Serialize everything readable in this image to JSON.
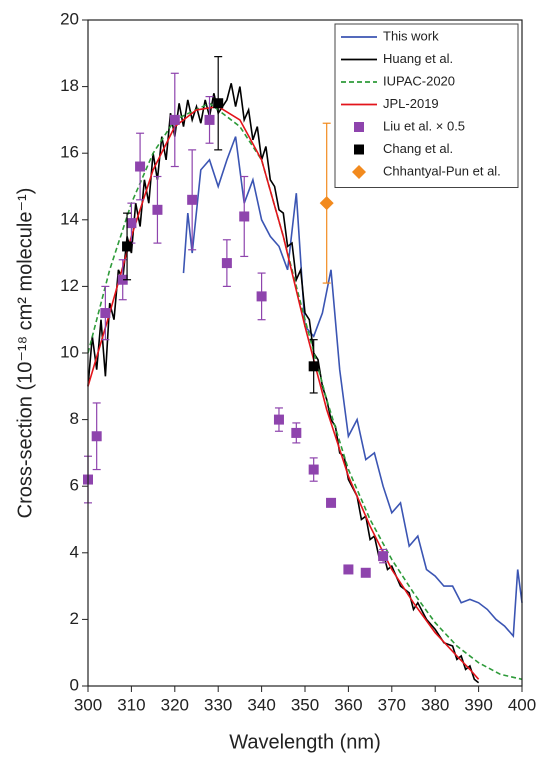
{
  "chart_data": {
    "type": "line",
    "xlabel": "Wavelength (nm)",
    "ylabel": "Cross-section (10⁻¹⁸ cm² molecule⁻¹)",
    "xlim": [
      300,
      400
    ],
    "xticks": [
      300,
      310,
      320,
      330,
      340,
      350,
      360,
      370,
      380,
      390,
      400
    ],
    "ylim": [
      0,
      20
    ],
    "yticks": [
      0,
      2,
      4,
      6,
      8,
      10,
      12,
      14,
      16,
      18,
      20
    ],
    "legend": "upper right",
    "series": [
      {
        "name": "This work",
        "kind": "line",
        "color": "#3b55b3",
        "linestyle": "solid",
        "x": [
          322,
          323,
          324,
          326,
          328,
          330,
          332,
          334,
          336,
          338,
          340,
          342,
          344,
          346,
          348,
          350,
          352,
          354,
          356,
          358,
          360,
          362,
          364,
          366,
          368,
          370,
          372,
          374,
          376,
          378,
          380,
          382,
          384,
          386,
          388,
          390,
          392,
          394,
          396,
          398,
          399,
          400
        ],
        "values": [
          12.4,
          14.2,
          13.0,
          15.5,
          15.8,
          15.0,
          15.8,
          16.5,
          14.5,
          15.2,
          14.0,
          13.5,
          13.2,
          12.5,
          14.8,
          10.8,
          10.5,
          11.2,
          12.5,
          9.5,
          7.5,
          8.0,
          6.8,
          7.0,
          6.0,
          5.2,
          5.5,
          4.2,
          4.5,
          3.5,
          3.3,
          3.0,
          3.0,
          2.5,
          2.6,
          2.5,
          2.3,
          2.0,
          1.8,
          1.5,
          3.5,
          2.5
        ]
      },
      {
        "name": "Huang et al.",
        "kind": "line",
        "color": "#000000",
        "linestyle": "solid",
        "x": [
          300,
          301,
          302,
          303,
          304,
          305,
          306,
          307,
          308,
          309,
          310,
          311,
          312,
          313,
          314,
          315,
          316,
          317,
          318,
          319,
          320,
          321,
          322,
          323,
          324,
          325,
          326,
          327,
          328,
          329,
          330,
          332,
          333,
          334,
          335,
          336,
          337,
          338,
          339,
          340,
          341,
          342,
          343,
          344,
          345,
          346,
          347,
          348,
          349,
          350,
          351,
          352,
          353,
          354,
          355,
          356,
          357,
          358,
          359,
          360,
          362,
          363,
          364,
          365,
          366,
          367,
          368,
          369,
          370,
          372,
          374,
          375,
          376,
          378,
          380,
          382,
          384,
          385,
          386,
          387,
          388,
          389,
          390
        ],
        "values": [
          9.0,
          10.5,
          9.5,
          11.0,
          9.3,
          11.5,
          11.0,
          12.5,
          12.2,
          13.5,
          13.0,
          14.5,
          13.8,
          15.2,
          14.5,
          16.0,
          15.2,
          16.5,
          15.8,
          17.2,
          16.5,
          17.5,
          16.8,
          17.6,
          17.0,
          17.4,
          16.9,
          17.6,
          17.1,
          17.8,
          17.2,
          17.6,
          18.1,
          17.4,
          18.0,
          17.0,
          17.3,
          16.4,
          16.8,
          15.8,
          16.2,
          15.2,
          15.0,
          14.3,
          14.2,
          13.2,
          13.3,
          12.2,
          12.5,
          11.2,
          11.0,
          10.0,
          9.8,
          9.0,
          8.6,
          8.0,
          7.8,
          7.0,
          6.9,
          6.2,
          5.7,
          5.0,
          5.1,
          4.4,
          4.5,
          3.9,
          4.0,
          3.5,
          3.6,
          3.0,
          2.8,
          2.3,
          2.5,
          2.0,
          1.7,
          1.3,
          1.2,
          0.8,
          0.9,
          0.5,
          0.6,
          0.2,
          0.1
        ]
      },
      {
        "name": "IUPAC-2020",
        "kind": "line",
        "color": "#2e9b3a",
        "linestyle": "dashed",
        "x": [
          300,
          305,
          310,
          315,
          320,
          328,
          335,
          340,
          345,
          350,
          355,
          360,
          365,
          370,
          375,
          380,
          385,
          390,
          395,
          400
        ],
        "values": [
          10.0,
          12.5,
          14.5,
          16.0,
          17.0,
          17.5,
          16.8,
          15.8,
          13.5,
          11.0,
          8.6,
          6.5,
          5.0,
          3.8,
          2.8,
          1.9,
          1.2,
          0.7,
          0.35,
          0.2
        ]
      },
      {
        "name": "JPL-2019",
        "kind": "line",
        "color": "#e3141b",
        "linestyle": "solid",
        "x": [
          300,
          305,
          310,
          315,
          320,
          325,
          330,
          335,
          340,
          345,
          350,
          355,
          360,
          365,
          370,
          375,
          380,
          385,
          388,
          390
        ],
        "values": [
          9.0,
          11.2,
          13.5,
          15.5,
          16.8,
          17.3,
          17.4,
          17.0,
          15.8,
          13.5,
          10.8,
          8.3,
          6.3,
          4.8,
          3.5,
          2.5,
          1.6,
          0.9,
          0.5,
          0.2
        ]
      },
      {
        "name": "Liu et al. × 0.5",
        "kind": "scatter",
        "marker": "square",
        "color": "#8e44ad",
        "x": [
          300,
          302,
          304,
          308,
          310,
          312,
          316,
          320,
          324,
          328,
          332,
          336,
          340,
          344,
          348,
          352,
          356,
          360,
          364,
          368
        ],
        "values": [
          6.2,
          7.5,
          11.2,
          12.2,
          13.9,
          15.6,
          14.3,
          17.0,
          14.6,
          17.0,
          12.7,
          14.1,
          11.7,
          8.0,
          7.6,
          6.5,
          5.5,
          3.5,
          3.4,
          3.9
        ],
        "errors": [
          0.7,
          1.0,
          0.8,
          0.6,
          0.6,
          1.0,
          1.0,
          1.4,
          1.5,
          0.7,
          0.7,
          1.2,
          0.7,
          0.35,
          0.3,
          0.35,
          0.1,
          0.1,
          0.1,
          0.2
        ]
      },
      {
        "name": "Chang et al.",
        "kind": "scatter",
        "marker": "square",
        "color": "#000000",
        "x": [
          309,
          330,
          352
        ],
        "values": [
          13.2,
          17.5,
          9.6
        ],
        "errors": [
          1.0,
          1.4,
          0.8
        ]
      },
      {
        "name": "Chhantyal-Pun et al.",
        "kind": "scatter",
        "marker": "diamond",
        "color": "#f28a1e",
        "x": [
          355
        ],
        "values": [
          14.5
        ],
        "errors": [
          2.4
        ]
      }
    ]
  }
}
